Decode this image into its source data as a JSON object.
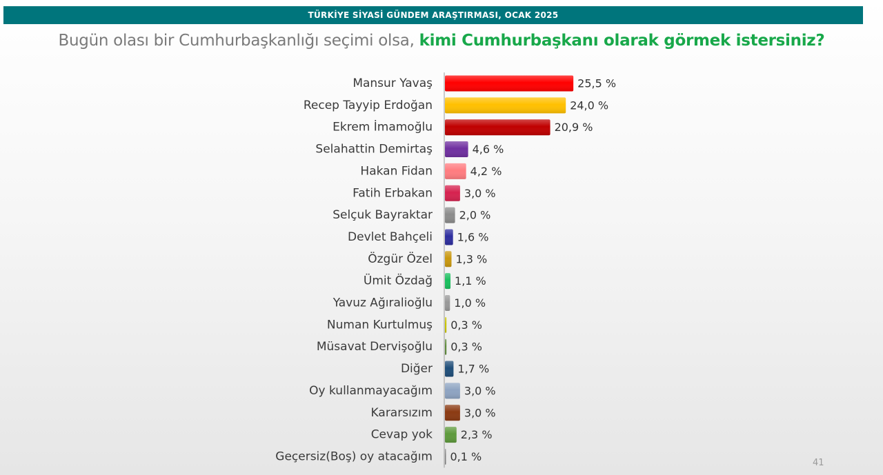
{
  "header": {
    "title": "TÜRKİYE SİYASİ GÜNDEM ARAŞTIRMASI, OCAK 2025"
  },
  "question": {
    "part1": "Bugün olası bir Cumhurbaşkanlığı seçimi olsa, ",
    "part2": "kimi Cumhurbaşkanı olarak görmek istersiniz?"
  },
  "page_number": "41",
  "chart_data": {
    "type": "bar",
    "orientation": "horizontal",
    "categories": [
      "Mansur Yavaş",
      "Recep Tayyip Erdoğan",
      "Ekrem İmamoğlu",
      "Selahattin Demirtaş",
      "Hakan Fidan",
      "Fatih Erbakan",
      "Selçuk Bayraktar",
      "Devlet Bahçeli",
      "Özgür Özel",
      "Ümit Özdağ",
      "Yavuz Ağıralioğlu",
      "Numan Kurtulmuş",
      "Müsavat Dervişoğlu",
      "Diğer",
      "Oy kullanmayacağım",
      "Kararsızım",
      "Cevap yok",
      "Geçersiz(Boş) oy atacağım"
    ],
    "values": [
      25.5,
      24.0,
      20.9,
      4.6,
      4.2,
      3.0,
      2.0,
      1.6,
      1.3,
      1.1,
      1.0,
      0.3,
      0.3,
      1.7,
      3.0,
      3.0,
      2.3,
      0.1
    ],
    "value_labels": [
      "25,5 %",
      "24,0 %",
      "20,9 %",
      "4,6 %",
      "4,2 %",
      "3,0 %",
      "2,0 %",
      "1,6 %",
      "1,3 %",
      "1,1 %",
      "1,0 %",
      "0,3 %",
      "0,3 %",
      "1,7 %",
      "3,0 %",
      "3,0 %",
      "2,3 %",
      "0,1 %"
    ],
    "colors": [
      "#ff0000",
      "#ffc000",
      "#c00000",
      "#7030a0",
      "#ff7c80",
      "#d6224f",
      "#8c8c8c",
      "#2e2e9e",
      "#c9980f",
      "#19bf5d",
      "#999999",
      "#c8c400",
      "#5e8a3a",
      "#1f4e79",
      "#8ea4c2",
      "#8b3a12",
      "#5e9a3c",
      "#7f7f7f"
    ],
    "grid": false,
    "legend": false
  }
}
